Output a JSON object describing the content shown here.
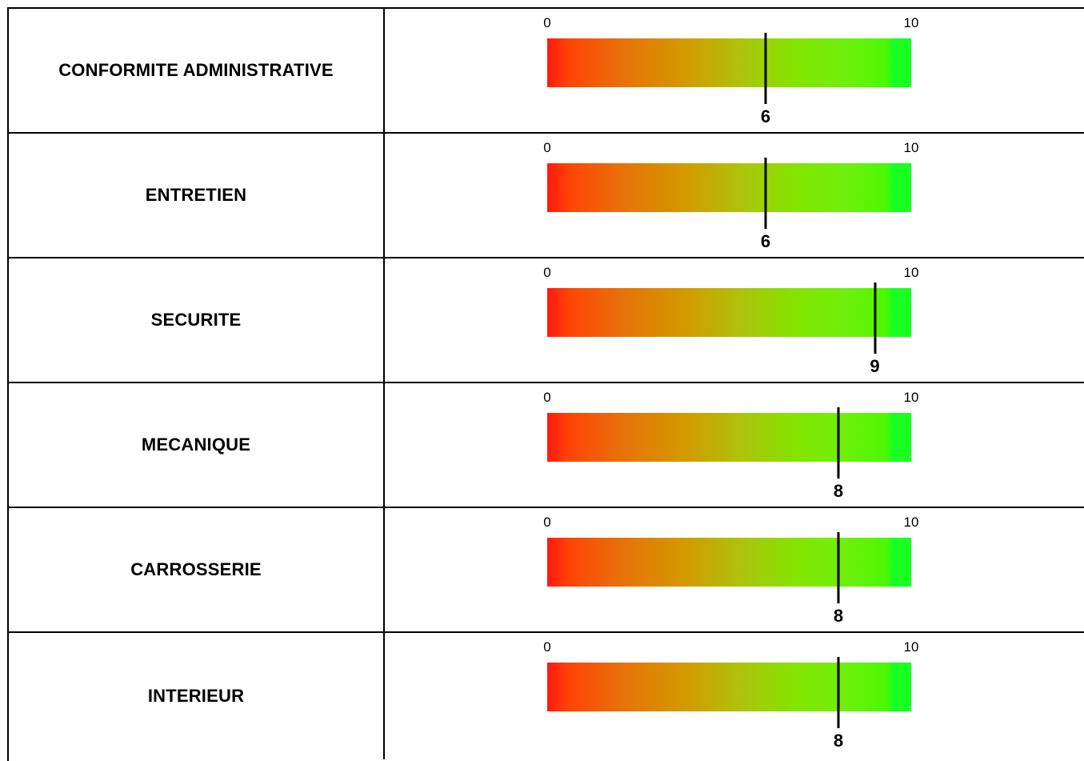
{
  "colors": {
    "gauge_low": "#ff1a10",
    "gauge_mid": "#d39a00",
    "gauge_high": "#19ff21",
    "border": "#000000"
  },
  "chart_data": {
    "type": "bar",
    "title": "",
    "xlabel": "",
    "ylabel": "",
    "xlim": [
      0,
      10
    ],
    "scale_min_label": "0",
    "scale_max_label": "10",
    "categories": [
      "CONFORMITE ADMINISTRATIVE",
      "ENTRETIEN",
      "SECURITE",
      "MECANIQUE",
      "CARROSSERIE",
      "INTERIEUR"
    ],
    "values": [
      6,
      6,
      9,
      8,
      8,
      8
    ],
    "rows": [
      {
        "label": "CONFORMITE ADMINISTRATIVE",
        "value": 6,
        "value_label": "6",
        "min_label": "0",
        "max_label": "10"
      },
      {
        "label": "ENTRETIEN",
        "value": 6,
        "value_label": "6",
        "min_label": "0",
        "max_label": "10"
      },
      {
        "label": "SECURITE",
        "value": 9,
        "value_label": "9",
        "min_label": "0",
        "max_label": "10"
      },
      {
        "label": "MECANIQUE",
        "value": 8,
        "value_label": "8",
        "min_label": "0",
        "max_label": "10"
      },
      {
        "label": "CARROSSERIE",
        "value": 8,
        "value_label": "8",
        "min_label": "0",
        "max_label": "10"
      },
      {
        "label": "INTERIEUR",
        "value": 8,
        "value_label": "8",
        "min_label": "0",
        "max_label": "10"
      }
    ]
  }
}
